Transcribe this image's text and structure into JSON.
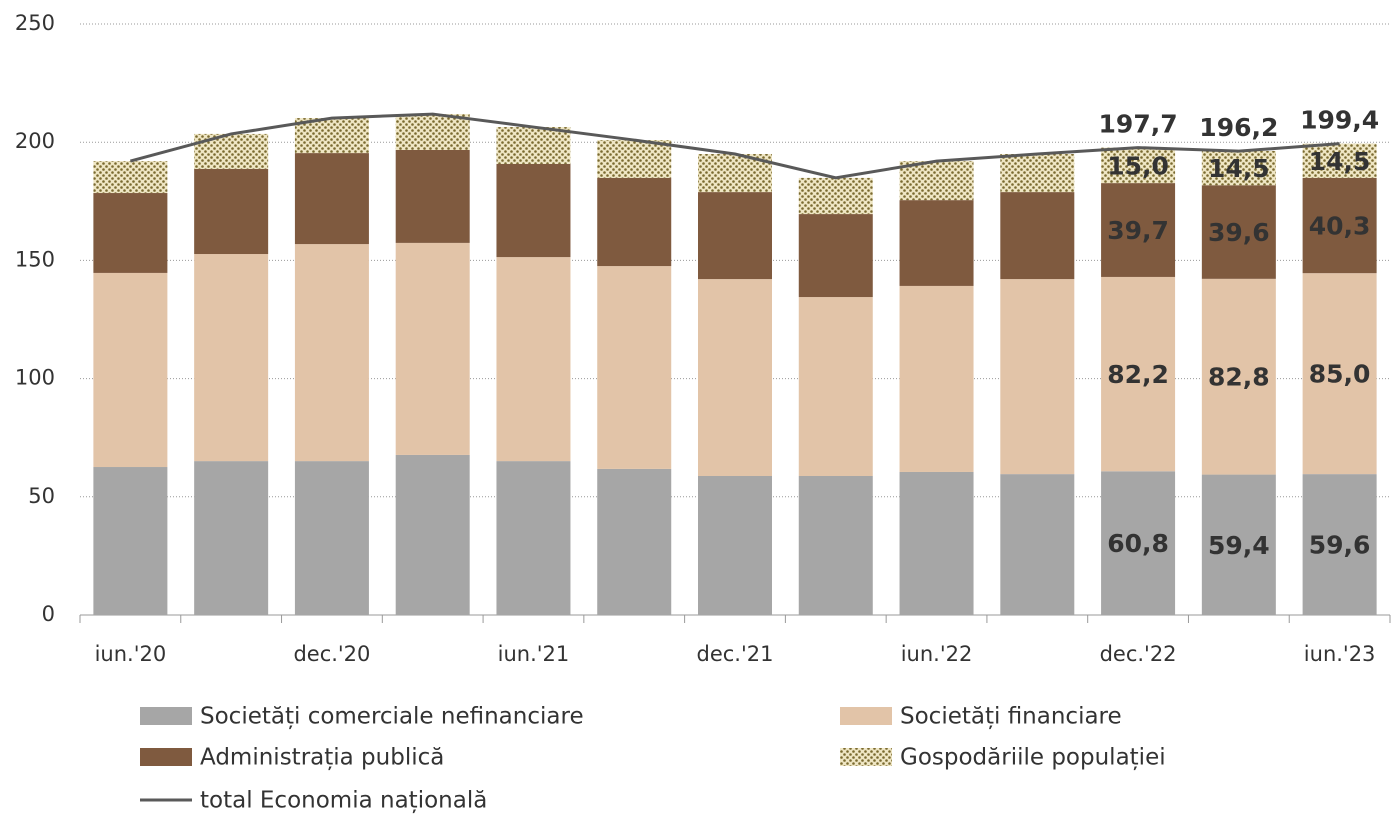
{
  "chart_data": {
    "type": "bar",
    "categories": [
      "iun.'20",
      null,
      "dec.'20",
      null,
      "iun.'21",
      null,
      "dec.'21",
      null,
      "iun.'22",
      null,
      "dec.'22",
      null,
      "iun.'23"
    ],
    "series": [
      {
        "name": "Societăți comerciale nefinanciare",
        "type": "bar",
        "color": "#a6a6a6",
        "label_color": "#222222",
        "values": [
          62.6,
          65.1,
          65.1,
          67.7,
          65.1,
          61.8,
          58.8,
          58.8,
          60.5,
          59.6,
          60.8,
          59.4,
          59.6
        ],
        "value_labels": [
          null,
          null,
          null,
          null,
          null,
          null,
          null,
          null,
          null,
          null,
          "60,8",
          "59,4",
          "59,6"
        ]
      },
      {
        "name": "Societăți financiare",
        "type": "bar",
        "color": "#e2c4a8",
        "label_color": "#222222",
        "values": [
          82.1,
          87.6,
          91.8,
          89.7,
          86.3,
          85.8,
          83.3,
          75.7,
          78.7,
          82.5,
          82.2,
          82.8,
          85.0
        ],
        "value_labels": [
          null,
          null,
          null,
          null,
          null,
          null,
          null,
          null,
          null,
          null,
          "82,2",
          "82,8",
          "85,0"
        ]
      },
      {
        "name": "Administrația publică",
        "type": "bar",
        "color": "#7f5a3f",
        "label_color": "#e8c9aa",
        "values": [
          33.8,
          36.0,
          38.5,
          39.3,
          39.4,
          37.3,
          36.8,
          35.1,
          36.3,
          36.8,
          39.7,
          39.6,
          40.3
        ],
        "value_labels": [
          null,
          null,
          null,
          null,
          null,
          null,
          null,
          null,
          null,
          null,
          "39,7",
          "39,6",
          "40,3"
        ]
      },
      {
        "name": "Gospodăriile populației",
        "type": "bar",
        "color": "#efe6c4",
        "hatch": "dots",
        "label_color": "#222222",
        "values": [
          13.5,
          14.8,
          14.8,
          15.2,
          15.6,
          16.0,
          16.1,
          15.3,
          16.5,
          16.1,
          15.0,
          14.5,
          14.5
        ],
        "value_labels": [
          null,
          null,
          null,
          null,
          null,
          null,
          null,
          null,
          null,
          null,
          "15,0",
          "14,5",
          "14,5"
        ]
      },
      {
        "name": "total Economia națională",
        "type": "line",
        "color": "#595959",
        "label_color": "#222222",
        "values": [
          192.0,
          203.5,
          210.2,
          211.9,
          206.4,
          200.9,
          195.0,
          184.9,
          192.0,
          195.0,
          197.7,
          196.2,
          199.4
        ],
        "value_labels": [
          null,
          null,
          null,
          null,
          null,
          null,
          null,
          null,
          null,
          null,
          "197,7",
          "196,2",
          "199,4"
        ]
      }
    ],
    "stacked": true,
    "ylim": [
      0,
      250
    ],
    "yticks": [
      0,
      50,
      100,
      150,
      200,
      250
    ],
    "grid": true
  }
}
